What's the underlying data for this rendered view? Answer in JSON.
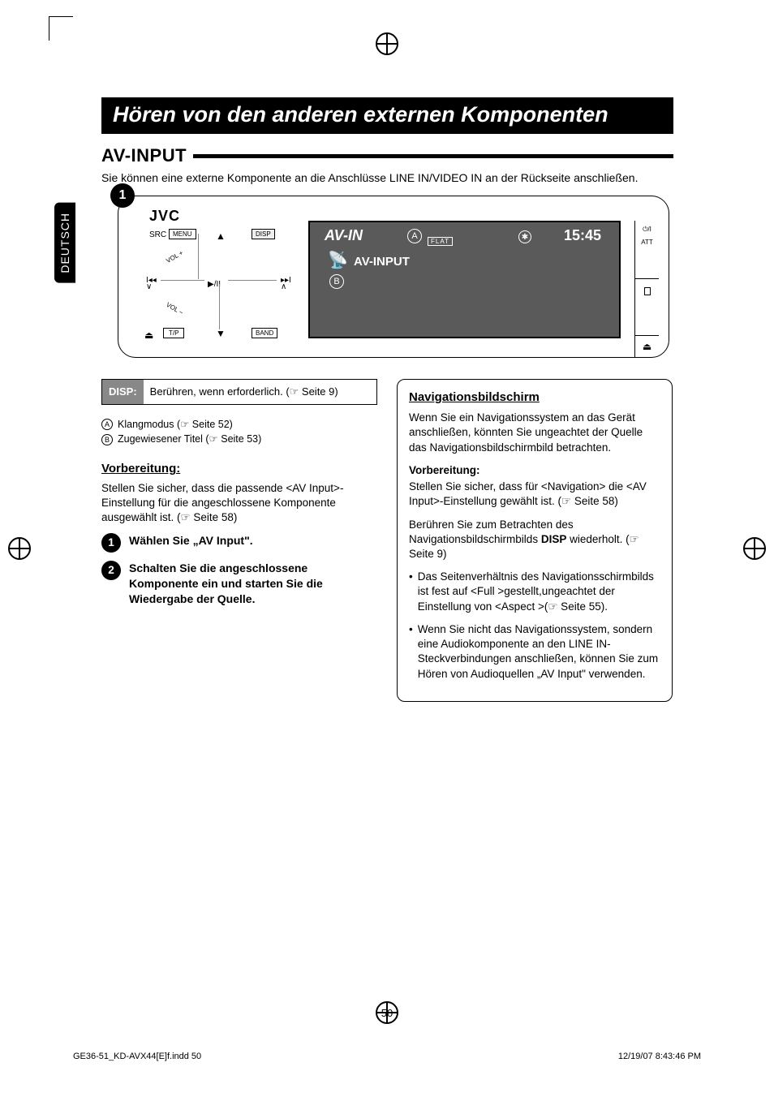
{
  "sideTab": "DEUTSCH",
  "title": "Hören von den anderen externen Komponenten",
  "section": "AV-INPUT",
  "intro": "Sie können eine externe Komponente an die Anschlüsse LINE IN/VIDEO IN an der Rückseite anschließen.",
  "figure": {
    "badge": "1",
    "brand": "JVC",
    "src": "SRC",
    "menu": "MENU",
    "disp": "DISP",
    "band": "BAND",
    "tp": "T/P",
    "volUp": "VOL +",
    "volDn": "VOL −",
    "play": "▶/II",
    "screen": {
      "src": "AV-IN",
      "flat": "FLAT",
      "time": "15:45",
      "sub": "AV-INPUT",
      "callA": "A",
      "callB": "B",
      "bt": "✱"
    },
    "side": {
      "att": "ATT",
      "pwr": "⏻/I"
    }
  },
  "dispBox": {
    "label": "DISP:",
    "text": "Berühren, wenn erforderlich. (☞ Seite 9)"
  },
  "callouts": {
    "A": "Klangmodus (☞ Seite 52)",
    "B": "Zugewiesener Titel (☞ Seite 53)"
  },
  "prep": {
    "head": "Vorbereitung:",
    "body": "Stellen Sie sicher, dass die passende  <AV Input>-Einstellung für die angeschlossene Komponente ausgewählt ist. (☞ Seite 58)"
  },
  "steps": {
    "s1": "Wählen Sie „AV Input\".",
    "s2": "Schalten Sie die angeschlossene Komponente ein und starten Sie die Wiedergabe der Quelle."
  },
  "nav": {
    "head": "Navigationsbildschirm",
    "p1": "Wenn Sie ein Navigationssystem an das Gerät anschließen, könnten Sie ungeachtet der Quelle das Navigationsbildschirmbild betrachten.",
    "prepHead": "Vorbereitung:",
    "prepBody": "Stellen Sie sicher, dass für <Navigation> die <AV Input>-Einstellung gewählt ist. (☞ Seite 58)",
    "p2a": "Berühren Sie zum Betrachten des Navigationsbildschirmbilds ",
    "p2b": "DISP",
    "p2c": " wiederholt. (☞ Seite 9)",
    "li1": "Das Seitenverhältnis des Navigationsschirmbilds ist fest auf <Full >gestellt,ungeachtet der Einstellung von <Aspect >(☞ Seite 55).",
    "li2": "Wenn Sie nicht das Navigationssystem, sondern eine Audiokomponente an den LINE IN-Steckverbindungen anschließen, können Sie zum Hören von Audioquellen „AV Input\" verwenden."
  },
  "pageNumber": "50",
  "footer": {
    "file": "GE36-51_KD-AVX44[E]f.indd   50",
    "ts": "12/19/07   8:43:46 PM"
  }
}
